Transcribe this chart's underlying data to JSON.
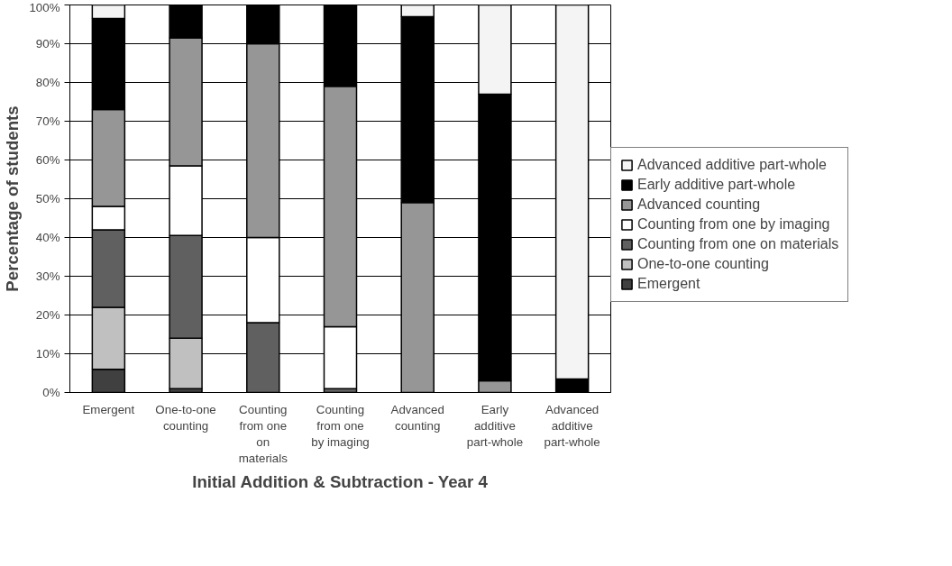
{
  "chart_data": {
    "type": "bar",
    "stacked": true,
    "xlabel": "Initial Addition & Subtraction - Year 4",
    "ylabel": "Percentage of students",
    "categories": [
      "Emergent",
      "One-to-one counting",
      "Counting from one on materials",
      "Counting from one by imaging",
      "Advanced counting",
      "Early additive part-whole",
      "Advanced additive part-whole"
    ],
    "series": [
      {
        "name": "Emergent",
        "color": "#404040",
        "values": [
          6,
          1,
          0,
          0,
          0,
          0,
          0
        ]
      },
      {
        "name": "One-to-one counting",
        "color": "#c0c0c0",
        "values": [
          16,
          13,
          0,
          0,
          0,
          0,
          0
        ]
      },
      {
        "name": "Counting from one on materials",
        "color": "#606060",
        "values": [
          20,
          26.5,
          18,
          1,
          0,
          0,
          0
        ]
      },
      {
        "name": "Counting from one by imaging",
        "color": "#ffffff",
        "values": [
          6,
          18,
          22,
          16,
          0,
          0,
          0
        ]
      },
      {
        "name": "Advanced counting",
        "color": "#969696",
        "values": [
          25,
          33,
          50,
          62,
          49,
          3,
          0
        ]
      },
      {
        "name": "Early additive part-whole",
        "color": "#000000",
        "values": [
          23.5,
          8.5,
          10,
          21,
          48,
          74,
          3.5
        ]
      },
      {
        "name": "Advanced additive part-whole",
        "color": "#f4f4f4",
        "values": [
          3.5,
          0,
          0,
          0,
          3,
          23,
          96.5
        ]
      }
    ],
    "ylim": [
      0,
      100
    ],
    "yticks": [
      {
        "value": 0,
        "label": "0%"
      },
      {
        "value": 10,
        "label": "10%"
      },
      {
        "value": 20,
        "label": "20%"
      },
      {
        "value": 30,
        "label": "30%"
      },
      {
        "value": 40,
        "label": "40%"
      },
      {
        "value": 50,
        "label": "50%"
      },
      {
        "value": 60,
        "label": "60%"
      },
      {
        "value": 70,
        "label": "70%"
      },
      {
        "value": 80,
        "label": "80%"
      },
      {
        "value": 90,
        "label": "90%"
      },
      {
        "value": 100,
        "label": "100%"
      }
    ],
    "grid": "y",
    "legend": "right"
  }
}
